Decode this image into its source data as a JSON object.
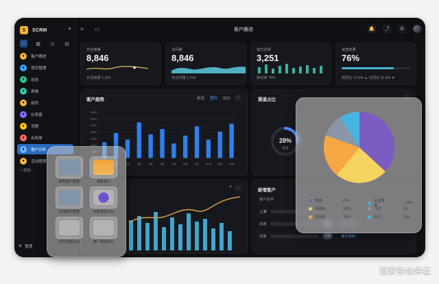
{
  "app": {
    "title": "SCRM",
    "header_title": "客户跟进"
  },
  "sidebar": {
    "items": [
      {
        "label": "客户跟进"
      },
      {
        "label": "项目管理"
      },
      {
        "label": "动态"
      },
      {
        "label": "表格"
      },
      {
        "label": "成员"
      },
      {
        "label": "仪表盘"
      },
      {
        "label": "流程"
      },
      {
        "label": "出库单"
      },
      {
        "label": "客户分析"
      },
      {
        "label": "活动管理"
      }
    ],
    "add_label": "添加",
    "manage_label": "管理"
  },
  "kpis": [
    {
      "label": "日活用量",
      "value": "8,846",
      "foot": "日活用量 1,234"
    },
    {
      "label": "访问量",
      "value": "8,846",
      "foot": "日访问量 1,234"
    },
    {
      "label": "成交比例",
      "value": "3,251",
      "foot": "转化率 75%"
    },
    {
      "label": "运营效果",
      "value": "76%",
      "foot": "周同比 12.5% ▲  日同比 11.8% ▼",
      "progress": 0.76
    }
  ],
  "cards": {
    "trend": {
      "title": "客户趋势",
      "tabs": [
        "新增",
        "签约",
        "成交"
      ],
      "active_tab": "签约"
    },
    "channel": {
      "title": "渠道占比",
      "donut_value": "28%",
      "donut_label": "总览"
    },
    "new_customers": {
      "title": "新增客户",
      "col_name": "客户名称",
      "rows": [
        {
          "name": "上海"
        },
        {
          "name": "北京",
          "badge": "已签"
        },
        {
          "name": "北京",
          "badge": "已签"
        }
      ],
      "link": "客户资料"
    }
  },
  "tools": {
    "items": [
      {
        "label": "新购客户趋势"
      },
      {
        "label": "销售漏斗"
      },
      {
        "label": "总体成交趋势"
      },
      {
        "label": "商机来源占比"
      },
      {
        "label": "成交金额对比"
      },
      {
        "label": "推广渠道转化"
      }
    ]
  },
  "pie_overlay": {
    "legend": [
      {
        "name": "直播",
        "pct": "47%",
        "color": "#7a5cc2"
      },
      {
        "name": "企业微信",
        "pct": "20%",
        "color": "#3fb8d9"
      },
      {
        "name": "代理商",
        "pct": "32%",
        "color": "#f4d35e"
      },
      {
        "name": "飞书",
        "pct": "9%",
        "color": "#8a97a7"
      },
      {
        "name": "短视频",
        "pct": "15%",
        "color": "#f4a742"
      },
      {
        "name": "钉钉",
        "pct": "10%",
        "color": "#48b5e0"
      }
    ]
  },
  "chart_data": [
    {
      "type": "bar",
      "title": "客户趋势",
      "categories": [
        "1月",
        "2月",
        "3月",
        "4月",
        "5月",
        "6月",
        "7月",
        "8月",
        "9月",
        "10月",
        "11月",
        "12月"
      ],
      "values": [
        1200,
        1900,
        1400,
        2700,
        1800,
        2200,
        1100,
        1700,
        2400,
        1400,
        2000,
        2600
      ],
      "ylim": [
        0,
        3500
      ]
    }
  ],
  "watermark": "百家号/伙伴云"
}
